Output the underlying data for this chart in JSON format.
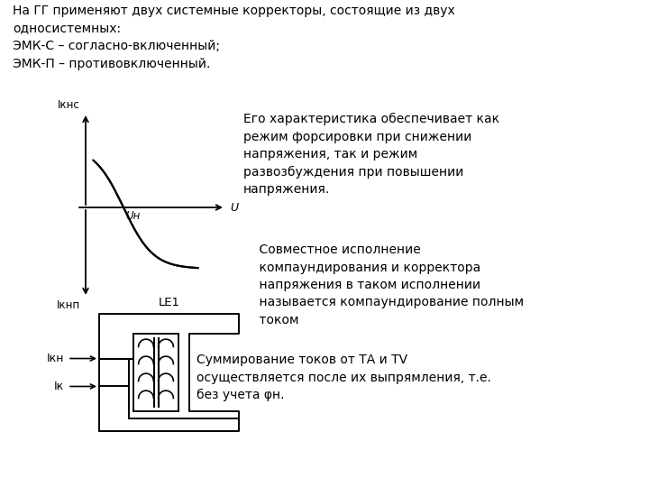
{
  "bg_color": "#ffffff",
  "title_text": "На ГГ применяют двух системные корректоры, состоящие из двух\nодносистемных:\nЭМК-С – согласно-включенный;\nЭМК-П – противовключенный.",
  "right_text1": "Его характеристика обеспечивает как\nрежим форсировки при снижении\nнапряжения, так и режим\nразвозбуждения при повышении\nнапряжения.",
  "right_text2": "    Совместное исполнение\n    компаундирования и корректора\n    напряжения в таком исполнении\n    называется компаундирование полным\n    током",
  "right_text3": "Суммирование токов от ТА и TV\nосуществляется после их выпрямления, т.е.\nбез учета φн.",
  "le1_label": "LE1",
  "graph_labels": {
    "ikns": "Iкнс",
    "iknp": "Iкнп",
    "un": "Uн",
    "u": "U"
  },
  "ik_label": "Iк",
  "ikn_label": "Iкн"
}
